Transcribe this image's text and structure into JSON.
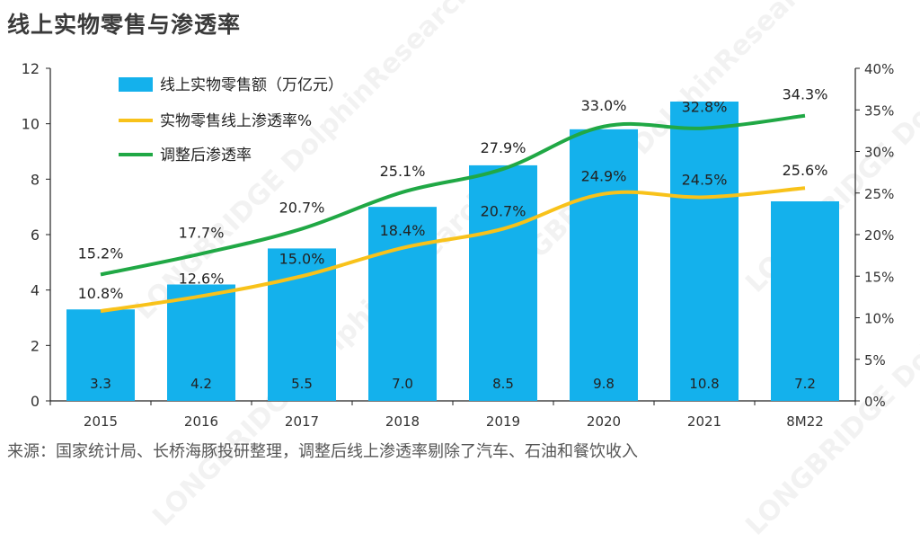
{
  "title": "线上实物零售与渗透率",
  "source": "来源：国家统计局、长桥海豚投研整理，调整后线上渗透率剔除了汽车、石油和餐饮收入",
  "watermark": "LONGBRIDGE DolphinResearch",
  "colors": {
    "bar": "#14b1ec",
    "line_yellow": "#f8c21a",
    "line_green": "#20a845",
    "axis": "#222222"
  },
  "chart_data": {
    "type": "bar",
    "title": "线上实物零售与渗透率",
    "categories": [
      "2015",
      "2016",
      "2017",
      "2018",
      "2019",
      "2020",
      "2021",
      "8M22"
    ],
    "ylim_left": [
      0,
      12
    ],
    "yticks_left": [
      "0",
      "2",
      "4",
      "6",
      "8",
      "10",
      "12"
    ],
    "ylim_right": [
      0,
      40
    ],
    "yticks_right": [
      "0%",
      "5%",
      "10%",
      "15%",
      "20%",
      "25%",
      "30%",
      "35%",
      "40%"
    ],
    "legend_position": "top-left",
    "grid": false,
    "series": [
      {
        "name": "线上实物零售额（万亿元）",
        "type": "bar",
        "axis": "left",
        "values": [
          3.3,
          4.2,
          5.5,
          7.0,
          8.5,
          9.8,
          10.8,
          7.2
        ],
        "labels": [
          "3.3",
          "4.2",
          "5.5",
          "7.0",
          "8.5",
          "9.8",
          "10.8",
          "7.2"
        ]
      },
      {
        "name": "实物零售线上渗透率%",
        "type": "line",
        "axis": "right",
        "values": [
          10.8,
          12.6,
          15.0,
          18.4,
          20.7,
          24.9,
          24.5,
          25.6
        ],
        "labels": [
          "10.8%",
          "12.6%",
          "15.0%",
          "18.4%",
          "20.7%",
          "24.9%",
          "24.5%",
          "25.6%"
        ]
      },
      {
        "name": "调整后渗透率",
        "type": "line",
        "axis": "right",
        "values": [
          15.2,
          17.7,
          20.7,
          25.1,
          27.9,
          33.0,
          32.8,
          34.3
        ],
        "labels": [
          "15.2%",
          "17.7%",
          "20.7%",
          "25.1%",
          "27.9%",
          "33.0%",
          "32.8%",
          "34.3%"
        ]
      }
    ]
  }
}
